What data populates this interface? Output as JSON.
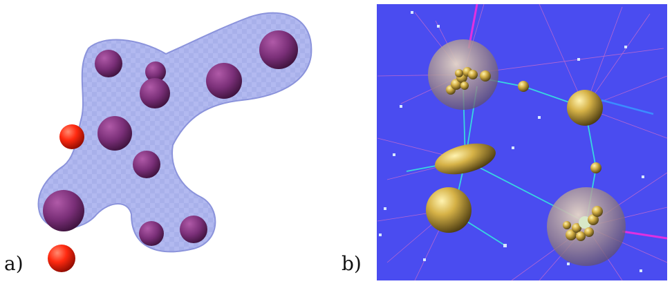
{
  "figure": {
    "panel_a_label": "a)",
    "panel_b_label": "b)"
  },
  "colors": {
    "blob_fill": "#a9b1ee",
    "blob_edge": "#7f88d8",
    "purple_sphere": "#7a2f78",
    "red_sphere": "#ff2a10",
    "panel_b_background": "#4a4cf0",
    "gold_sphere": "#c9a53a",
    "edge_cyan": "#38d6e0",
    "edge_pink": "#d870c8"
  }
}
